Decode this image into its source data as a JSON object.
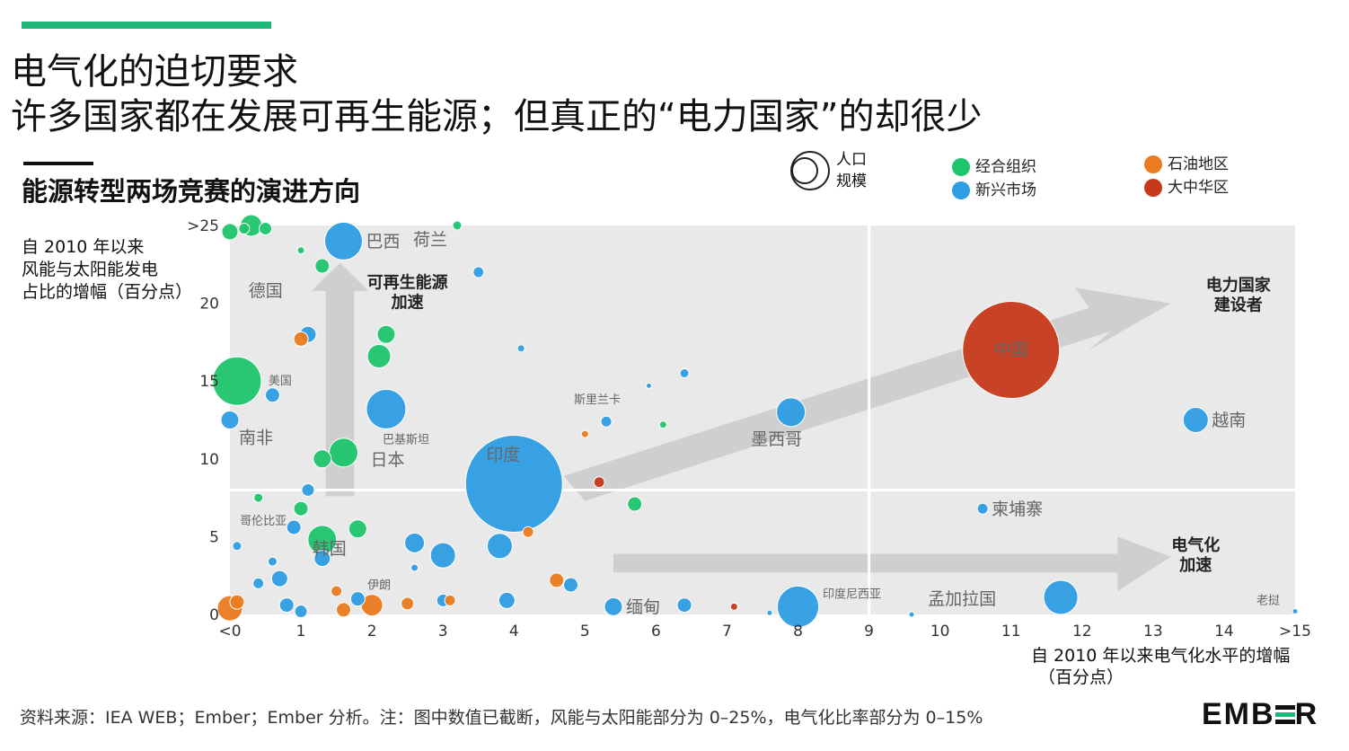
{
  "header": {
    "title_line1": "电气化的迫切要求",
    "title_line2": "许多国家都在发展可再生能源；但真正的“电力国家”的却很少",
    "subtitle": "能源转型两场竞赛的演进方向"
  },
  "legend": {
    "size_label_1": "人口",
    "size_label_2": "规模",
    "groups": [
      {
        "label": "经合组织",
        "color": "#1fc56d"
      },
      {
        "label": "新兴市场",
        "color": "#2e9de4"
      },
      {
        "label": "石油地区",
        "color": "#ea7b1f"
      },
      {
        "label": "大中华区",
        "color": "#c63a1b"
      }
    ]
  },
  "source_note": "资料来源：IEA WEB；Ember；Ember 分析。注：图中数值已截断，风能与太阳能部分为 0–25%，电气化比率部分为 0–15%",
  "logo": {
    "pre": "EMB",
    "post": "R"
  },
  "chart_data": {
    "type": "scatter",
    "ylabel_lines": [
      "自 2010 年以来",
      "风能与太阳能发电",
      "占比的增幅（百分点）"
    ],
    "xlabel_lines": [
      "自 2010 年以来电气化水平的增幅",
      "（百分点）"
    ],
    "x_ticks": [
      "<0",
      "1",
      "2",
      "3",
      "4",
      "5",
      "6",
      "7",
      "8",
      "9",
      "10",
      "11",
      "12",
      "13",
      "14",
      ">15"
    ],
    "y_ticks": [
      "0",
      "5",
      "10",
      "15",
      "20",
      ">25"
    ],
    "xlim": [
      0,
      15
    ],
    "ylim": [
      0,
      25
    ],
    "quadrant_lines": {
      "x": 9,
      "y": 8
    },
    "quadrant_labels": [
      {
        "lines": [
          "可再生能源",
          "加速"
        ],
        "x": 2.5,
        "y": 21
      },
      {
        "lines": [
          "电力国家",
          "建设者"
        ],
        "x": 14.2,
        "y": 20.8
      },
      {
        "lines": [
          "电气化",
          "加速"
        ],
        "x": 13.6,
        "y": 4.1
      }
    ],
    "labeled_points": [
      {
        "label": "中国",
        "x": 11.0,
        "y": 17.0,
        "size": 54,
        "group": "大中华区"
      },
      {
        "label": "印度",
        "x": 4.0,
        "y": 8.4,
        "size": 54,
        "group": "新兴市场"
      },
      {
        "label": "越南",
        "x": 13.6,
        "y": 12.5,
        "size": 14,
        "group": "新兴市场"
      },
      {
        "label": "墨西哥",
        "x": 7.9,
        "y": 13.0,
        "size": 16,
        "group": "新兴市场"
      },
      {
        "label": "柬埔寨",
        "x": 10.6,
        "y": 6.8,
        "size": 6,
        "group": "新兴市场"
      },
      {
        "label": "孟加拉国",
        "x": 11.7,
        "y": 1.1,
        "size": 19,
        "group": "新兴市场"
      },
      {
        "label": "印度尼西亚",
        "x": 8.0,
        "y": 0.5,
        "size": 23,
        "group": "新兴市场"
      },
      {
        "label": "缅甸",
        "x": 5.4,
        "y": 0.5,
        "size": 10,
        "group": "新兴市场"
      },
      {
        "label": "斯里兰卡",
        "x": 5.3,
        "y": 12.4,
        "size": 6,
        "group": "新兴市场"
      },
      {
        "label": "巴基斯坦",
        "x": 2.2,
        "y": 13.2,
        "size": 22,
        "group": "新兴市场"
      },
      {
        "label": "巴西",
        "x": 1.6,
        "y": 24.0,
        "size": 21,
        "group": "新兴市场"
      },
      {
        "label": "荷兰",
        "x": 3.2,
        "y": 25.0,
        "size": 5,
        "group": "经合组织"
      },
      {
        "label": "德国",
        "x": 0.3,
        "y": 25.0,
        "size": 12,
        "group": "经合组织"
      },
      {
        "label": "美国",
        "x": 0.1,
        "y": 15.0,
        "size": 27,
        "group": "经合组织"
      },
      {
        "label": "南非",
        "x": 0.0,
        "y": 12.5,
        "size": 10,
        "group": "新兴市场"
      },
      {
        "label": "日本",
        "x": 1.6,
        "y": 10.4,
        "size": 16,
        "group": "经合组织"
      },
      {
        "label": "韩国",
        "x": 1.3,
        "y": 4.8,
        "size": 16,
        "group": "经合组织"
      },
      {
        "label": "哥伦比亚",
        "x": 0.9,
        "y": 5.6,
        "size": 8,
        "group": "新兴市场"
      },
      {
        "label": "伊朗",
        "x": 2.0,
        "y": 0.6,
        "size": 12,
        "group": "石油地区"
      },
      {
        "label": "老挝",
        "x": 15.0,
        "y": 0.2,
        "size": 3,
        "group": "新兴市场"
      }
    ],
    "unlabeled_points": [
      {
        "x": 0.0,
        "y": 24.6,
        "size": 9,
        "group": "经合组织"
      },
      {
        "x": 0.5,
        "y": 24.8,
        "size": 7,
        "group": "经合组织"
      },
      {
        "x": 0.2,
        "y": 24.8,
        "size": 6,
        "group": "经合组织"
      },
      {
        "x": 1.0,
        "y": 23.4,
        "size": 4,
        "group": "经合组织"
      },
      {
        "x": 1.3,
        "y": 22.4,
        "size": 8,
        "group": "经合组织"
      },
      {
        "x": 3.5,
        "y": 22.0,
        "size": 6,
        "group": "新兴市场"
      },
      {
        "x": 2.2,
        "y": 18.0,
        "size": 10,
        "group": "经合组织"
      },
      {
        "x": 2.1,
        "y": 16.6,
        "size": 13,
        "group": "经合组织"
      },
      {
        "x": 1.1,
        "y": 18.0,
        "size": 9,
        "group": "新兴市场"
      },
      {
        "x": 1.0,
        "y": 17.7,
        "size": 8,
        "group": "石油地区"
      },
      {
        "x": 0.6,
        "y": 14.1,
        "size": 8,
        "group": "新兴市场"
      },
      {
        "x": 1.3,
        "y": 10.0,
        "size": 10,
        "group": "经合组织"
      },
      {
        "x": 1.1,
        "y": 8.0,
        "size": 7,
        "group": "新兴市场"
      },
      {
        "x": 1.0,
        "y": 6.8,
        "size": 8,
        "group": "经合组织"
      },
      {
        "x": 1.8,
        "y": 5.5,
        "size": 10,
        "group": "经合组织"
      },
      {
        "x": 1.3,
        "y": 3.6,
        "size": 9,
        "group": "新兴市场"
      },
      {
        "x": 2.6,
        "y": 4.6,
        "size": 11,
        "group": "新兴市场"
      },
      {
        "x": 3.0,
        "y": 3.8,
        "size": 14,
        "group": "新兴市场"
      },
      {
        "x": 3.8,
        "y": 4.4,
        "size": 14,
        "group": "新兴市场"
      },
      {
        "x": 0.7,
        "y": 2.3,
        "size": 9,
        "group": "新兴市场"
      },
      {
        "x": 0.4,
        "y": 2.0,
        "size": 6,
        "group": "新兴市场"
      },
      {
        "x": 0.0,
        "y": 0.4,
        "size": 14,
        "group": "石油地区"
      },
      {
        "x": 0.1,
        "y": 0.8,
        "size": 8,
        "group": "石油地区"
      },
      {
        "x": 0.8,
        "y": 0.6,
        "size": 8,
        "group": "新兴市场"
      },
      {
        "x": 1.6,
        "y": 0.3,
        "size": 8,
        "group": "石油地区"
      },
      {
        "x": 1.8,
        "y": 1.0,
        "size": 8,
        "group": "新兴市场"
      },
      {
        "x": 2.5,
        "y": 0.7,
        "size": 7,
        "group": "石油地区"
      },
      {
        "x": 3.1,
        "y": 0.9,
        "size": 6,
        "group": "石油地区"
      },
      {
        "x": 3.0,
        "y": 0.9,
        "size": 7,
        "group": "新兴市场"
      },
      {
        "x": 3.9,
        "y": 0.9,
        "size": 9,
        "group": "新兴市场"
      },
      {
        "x": 4.6,
        "y": 2.2,
        "size": 8,
        "group": "石油地区"
      },
      {
        "x": 4.8,
        "y": 1.9,
        "size": 8,
        "group": "新兴市场"
      },
      {
        "x": 6.4,
        "y": 0.6,
        "size": 8,
        "group": "新兴市场"
      },
      {
        "x": 7.1,
        "y": 0.5,
        "size": 4,
        "group": "大中华区"
      },
      {
        "x": 5.2,
        "y": 8.5,
        "size": 6,
        "group": "大中华区"
      },
      {
        "x": 5.7,
        "y": 7.1,
        "size": 8,
        "group": "经合组织"
      },
      {
        "x": 4.2,
        "y": 5.3,
        "size": 6,
        "group": "石油地区"
      },
      {
        "x": 5.0,
        "y": 11.6,
        "size": 4,
        "group": "石油地区"
      },
      {
        "x": 6.1,
        "y": 12.2,
        "size": 4,
        "group": "经合组织"
      },
      {
        "x": 6.4,
        "y": 15.5,
        "size": 5,
        "group": "新兴市场"
      },
      {
        "x": 5.9,
        "y": 14.7,
        "size": 3,
        "group": "新兴市场"
      },
      {
        "x": 4.1,
        "y": 17.1,
        "size": 4,
        "group": "新兴市场"
      },
      {
        "x": 1.0,
        "y": 0.2,
        "size": 7,
        "group": "新兴市场"
      },
      {
        "x": 2.6,
        "y": 3.0,
        "size": 4,
        "group": "新兴市场"
      },
      {
        "x": 0.6,
        "y": 3.4,
        "size": 5,
        "group": "新兴市场"
      },
      {
        "x": 9.6,
        "y": 0.0,
        "size": 3,
        "group": "新兴市场"
      },
      {
        "x": 7.6,
        "y": 0.1,
        "size": 3,
        "group": "新兴市场"
      },
      {
        "x": 0.1,
        "y": 4.4,
        "size": 5,
        "group": "新兴市场"
      },
      {
        "x": 1.5,
        "y": 1.5,
        "size": 6,
        "group": "石油地区"
      },
      {
        "x": 0.4,
        "y": 7.5,
        "size": 5,
        "group": "经合组织"
      }
    ]
  }
}
